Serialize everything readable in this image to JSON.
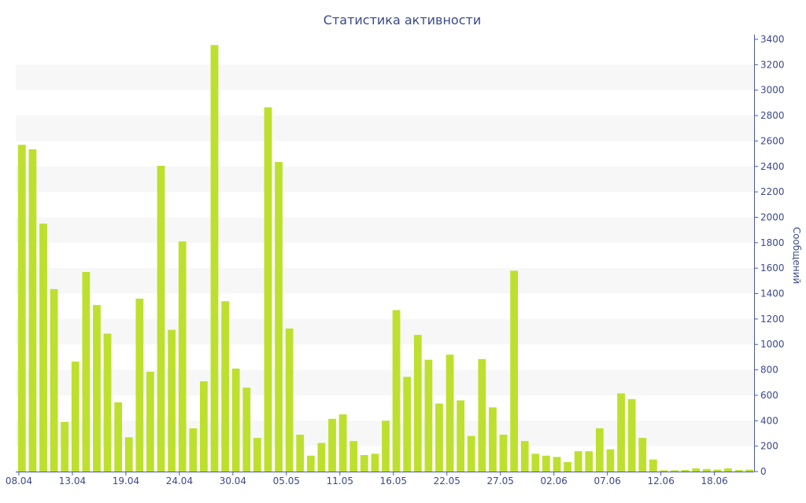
{
  "chart_data": {
    "type": "bar",
    "title": "Статистика активности",
    "ylabel": "Сообщений",
    "xlabel": "",
    "ylim": [
      0,
      3400
    ],
    "y_ticks": [
      0,
      200,
      400,
      600,
      800,
      1000,
      1200,
      1400,
      1600,
      1800,
      2000,
      2200,
      2400,
      2600,
      2800,
      3000,
      3200,
      3400
    ],
    "y_axis_position": "right",
    "grid": "alternating-bands",
    "bar_color": "#bde02f",
    "text_color": "#3a4a8a",
    "x_tick_labels": [
      "08.04",
      "13.04",
      "19.04",
      "24.04",
      "30.04",
      "05.05",
      "11.05",
      "16.05",
      "22.05",
      "27.05",
      "02.06",
      "07.06",
      "12.06",
      "18.06"
    ],
    "x_tick_label_positions": [
      0,
      5,
      10,
      15,
      20,
      25,
      30,
      35,
      40,
      45,
      50,
      55,
      60,
      65
    ],
    "values": [
      2570,
      2535,
      1950,
      1435,
      390,
      865,
      1570,
      1310,
      1085,
      545,
      270,
      1360,
      785,
      2405,
      1115,
      1810,
      340,
      710,
      3355,
      1340,
      810,
      660,
      265,
      2865,
      2435,
      1125,
      290,
      125,
      225,
      415,
      450,
      240,
      130,
      140,
      400,
      1270,
      745,
      1075,
      880,
      535,
      920,
      560,
      280,
      885,
      505,
      290,
      1580,
      240,
      140,
      125,
      115,
      75,
      160,
      160,
      340,
      175,
      615,
      570,
      265,
      95,
      10,
      10,
      12,
      25,
      20,
      15,
      25,
      12,
      15
    ]
  }
}
